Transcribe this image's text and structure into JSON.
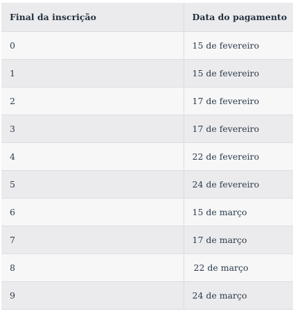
{
  "table": {
    "headers": [
      "Final da inscrição",
      "Data do pagamento"
    ],
    "rows": [
      [
        "0",
        "15 de fevereiro"
      ],
      [
        "1",
        "15 de fevereiro"
      ],
      [
        "2",
        "17 de fevereiro"
      ],
      [
        "3",
        "17 de fevereiro"
      ],
      [
        "4",
        "22 de fevereiro"
      ],
      [
        "5",
        "24 de fevereiro"
      ],
      [
        "6",
        "15 de março"
      ],
      [
        "7",
        "17 de março"
      ],
      [
        "8",
        "22 de março"
      ],
      [
        "9",
        "24 de março"
      ]
    ]
  }
}
